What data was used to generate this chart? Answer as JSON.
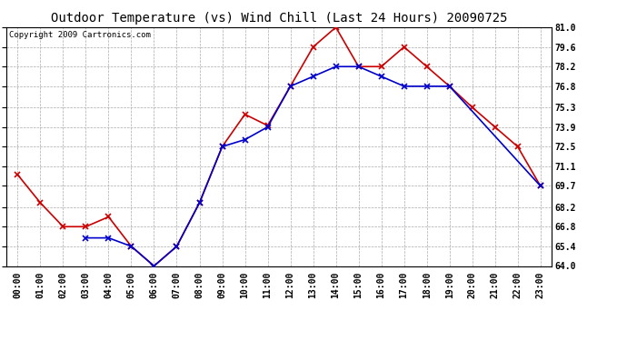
{
  "title": "Outdoor Temperature (vs) Wind Chill (Last 24 Hours) 20090725",
  "copyright": "Copyright 2009 Cartronics.com",
  "hours": [
    "00:00",
    "01:00",
    "02:00",
    "03:00",
    "04:00",
    "05:00",
    "06:00",
    "07:00",
    "08:00",
    "09:00",
    "10:00",
    "11:00",
    "12:00",
    "13:00",
    "14:00",
    "15:00",
    "16:00",
    "17:00",
    "18:00",
    "19:00",
    "20:00",
    "21:00",
    "22:00",
    "23:00"
  ],
  "temp": [
    70.5,
    68.5,
    66.8,
    66.8,
    67.5,
    65.4,
    64.0,
    65.4,
    68.5,
    72.5,
    74.8,
    74.0,
    76.8,
    79.6,
    81.0,
    78.2,
    78.2,
    79.6,
    78.2,
    76.8,
    75.3,
    73.9,
    72.5,
    69.7
  ],
  "windchill": [
    null,
    null,
    null,
    66.0,
    66.0,
    65.4,
    64.0,
    65.4,
    68.5,
    72.5,
    73.0,
    73.9,
    76.8,
    77.5,
    78.2,
    78.2,
    77.5,
    76.8,
    76.8,
    76.8,
    null,
    null,
    null,
    69.7
  ],
  "temp_color": "#cc0000",
  "windchill_color": "#0000cc",
  "marker": "x",
  "ylim": [
    64.0,
    81.0
  ],
  "yticks": [
    64.0,
    65.4,
    66.8,
    68.2,
    69.7,
    71.1,
    72.5,
    73.9,
    75.3,
    76.8,
    78.2,
    79.6,
    81.0
  ],
  "ytick_labels": [
    "64.0",
    "65.4",
    "66.8",
    "68.2",
    "69.7",
    "71.1",
    "72.5",
    "73.9",
    "75.3",
    "76.8",
    "78.2",
    "79.6",
    "81.0"
  ],
  "background_color": "#ffffff",
  "plot_bg_color": "#ffffff",
  "grid_color": "#aaaaaa",
  "title_fontsize": 10,
  "copyright_fontsize": 6.5,
  "tick_fontsize": 7
}
